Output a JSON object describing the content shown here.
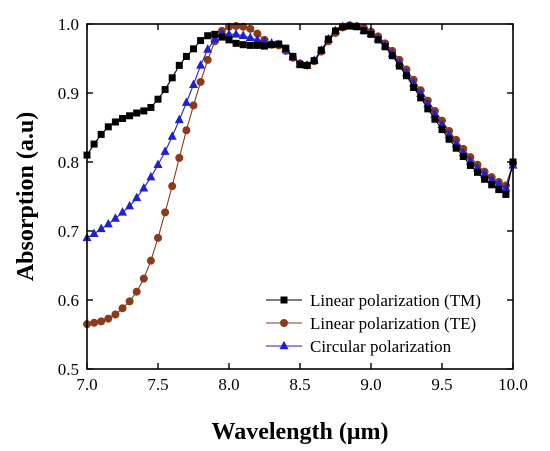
{
  "chart_data": {
    "type": "line",
    "xlabel": "Wavelength (μm)",
    "ylabel": "Absorption (a.u)",
    "xlim": [
      7.0,
      10.0
    ],
    "ylim": [
      0.5,
      1.0
    ],
    "xticks": [
      7.0,
      7.5,
      8.0,
      8.5,
      9.0,
      9.5,
      10.0
    ],
    "xtick_labels": [
      "7.0",
      "7.5",
      "8.0",
      "8.5",
      "9.0",
      "9.5",
      "10.0"
    ],
    "yticks": [
      0.5,
      0.6,
      0.7,
      0.8,
      0.9,
      1.0
    ],
    "ytick_labels": [
      "0.5",
      "0.6",
      "0.7",
      "0.8",
      "0.9",
      "1.0"
    ],
    "grid": false,
    "legend_position": "bottom-right",
    "series": [
      {
        "name": "Linear polarization (TM)",
        "color": "#000000",
        "marker": "square",
        "x": [
          7.0,
          7.05,
          7.1,
          7.15,
          7.2,
          7.25,
          7.3,
          7.35,
          7.4,
          7.45,
          7.5,
          7.55,
          7.6,
          7.65,
          7.7,
          7.75,
          7.8,
          7.85,
          7.9,
          7.95,
          8.0,
          8.05,
          8.1,
          8.15,
          8.2,
          8.25,
          8.3,
          8.35,
          8.4,
          8.45,
          8.5,
          8.55,
          8.6,
          8.65,
          8.7,
          8.75,
          8.8,
          8.85,
          8.9,
          8.95,
          9.0,
          9.05,
          9.1,
          9.15,
          9.2,
          9.25,
          9.3,
          9.35,
          9.4,
          9.45,
          9.5,
          9.55,
          9.6,
          9.65,
          9.7,
          9.75,
          9.8,
          9.85,
          9.9,
          9.95,
          10.0
        ],
        "values": [
          0.81,
          0.826,
          0.84,
          0.851,
          0.858,
          0.863,
          0.867,
          0.871,
          0.874,
          0.879,
          0.891,
          0.905,
          0.922,
          0.94,
          0.953,
          0.964,
          0.976,
          0.983,
          0.985,
          0.981,
          0.977,
          0.972,
          0.97,
          0.969,
          0.969,
          0.968,
          0.97,
          0.971,
          0.965,
          0.953,
          0.941,
          0.94,
          0.947,
          0.962,
          0.978,
          0.99,
          0.996,
          0.997,
          0.996,
          0.99,
          0.985,
          0.977,
          0.967,
          0.954,
          0.939,
          0.925,
          0.908,
          0.893,
          0.877,
          0.862,
          0.847,
          0.833,
          0.82,
          0.808,
          0.795,
          0.785,
          0.775,
          0.767,
          0.76,
          0.753,
          0.8
        ]
      },
      {
        "name": "Linear polarization (TE)",
        "color": "#8b3a1a",
        "marker": "circle",
        "x": [
          7.0,
          7.05,
          7.1,
          7.15,
          7.2,
          7.25,
          7.3,
          7.35,
          7.4,
          7.45,
          7.5,
          7.55,
          7.6,
          7.65,
          7.7,
          7.75,
          7.8,
          7.85,
          7.9,
          7.95,
          8.0,
          8.05,
          8.1,
          8.15,
          8.2,
          8.25,
          8.3,
          8.35,
          8.4,
          8.45,
          8.5,
          8.55,
          8.6,
          8.65,
          8.7,
          8.75,
          8.8,
          8.85,
          8.9,
          8.95,
          9.0,
          9.05,
          9.1,
          9.15,
          9.2,
          9.25,
          9.3,
          9.35,
          9.4,
          9.45,
          9.5,
          9.55,
          9.6,
          9.65,
          9.7,
          9.75,
          9.8,
          9.85,
          9.9,
          9.95,
          10.0
        ],
        "values": [
          0.565,
          0.567,
          0.569,
          0.573,
          0.579,
          0.588,
          0.598,
          0.612,
          0.631,
          0.657,
          0.69,
          0.727,
          0.765,
          0.806,
          0.846,
          0.882,
          0.916,
          0.948,
          0.975,
          0.99,
          0.996,
          0.997,
          0.996,
          0.993,
          0.986,
          0.977,
          0.97,
          0.969,
          0.961,
          0.951,
          0.943,
          0.94,
          0.946,
          0.96,
          0.975,
          0.987,
          0.995,
          0.998,
          0.997,
          0.994,
          0.989,
          0.982,
          0.972,
          0.961,
          0.948,
          0.934,
          0.919,
          0.904,
          0.889,
          0.874,
          0.86,
          0.845,
          0.832,
          0.819,
          0.807,
          0.796,
          0.786,
          0.778,
          0.771,
          0.766,
          0.798
        ]
      },
      {
        "name": "Circular polarization",
        "color": "#1f1fd6",
        "marker": "triangle",
        "x": [
          7.0,
          7.05,
          7.1,
          7.15,
          7.2,
          7.25,
          7.3,
          7.35,
          7.4,
          7.45,
          7.5,
          7.55,
          7.6,
          7.65,
          7.7,
          7.75,
          7.8,
          7.85,
          7.9,
          7.95,
          8.0,
          8.05,
          8.1,
          8.15,
          8.2,
          8.25,
          8.3,
          8.35,
          8.4,
          8.45,
          8.5,
          8.55,
          8.6,
          8.65,
          8.7,
          8.75,
          8.8,
          8.85,
          8.9,
          8.95,
          9.0,
          9.05,
          9.1,
          9.15,
          9.2,
          9.25,
          9.3,
          9.35,
          9.4,
          9.45,
          9.5,
          9.55,
          9.6,
          9.65,
          9.7,
          9.75,
          9.8,
          9.85,
          9.9,
          9.95,
          10.0
        ],
        "values": [
          0.69,
          0.696,
          0.703,
          0.71,
          0.718,
          0.727,
          0.736,
          0.748,
          0.762,
          0.778,
          0.796,
          0.815,
          0.837,
          0.861,
          0.886,
          0.912,
          0.94,
          0.963,
          0.978,
          0.986,
          0.985,
          0.985,
          0.983,
          0.98,
          0.977,
          0.974,
          0.972,
          0.97,
          0.963,
          0.952,
          0.942,
          0.94,
          0.947,
          0.962,
          0.978,
          0.99,
          0.996,
          0.997,
          0.996,
          0.991,
          0.986,
          0.979,
          0.969,
          0.957,
          0.943,
          0.929,
          0.914,
          0.899,
          0.884,
          0.869,
          0.854,
          0.839,
          0.826,
          0.813,
          0.801,
          0.791,
          0.782,
          0.774,
          0.768,
          0.762,
          0.795
        ]
      }
    ]
  }
}
